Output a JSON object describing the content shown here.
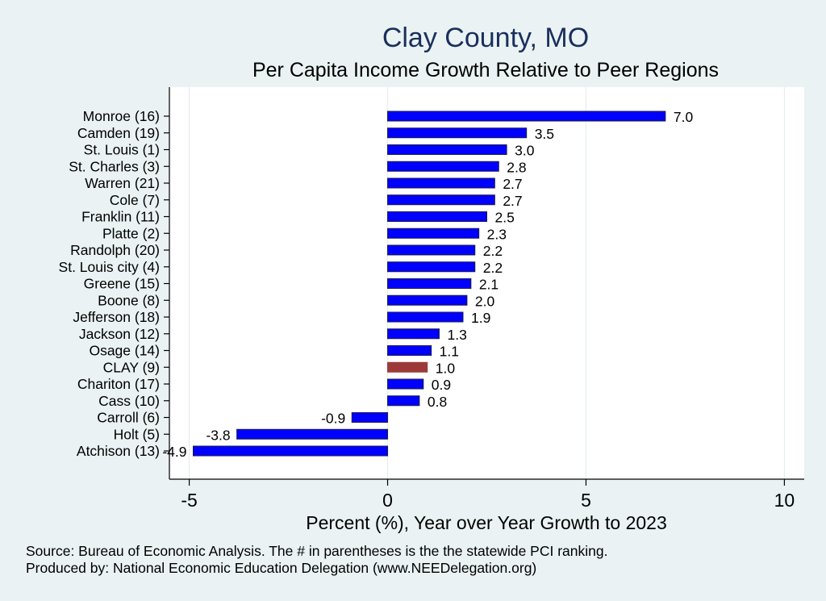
{
  "chart_data": {
    "type": "bar",
    "orientation": "horizontal",
    "title": "Clay County, MO",
    "subtitle": "Per Capita Income Growth Relative to Peer Regions",
    "xlabel": "Percent (%), Year over Year Growth to 2023",
    "ylabel": "",
    "xlim": [
      -5.5,
      10.5
    ],
    "xticks": [
      -5,
      0,
      5,
      10
    ],
    "grid": true,
    "colors": {
      "default": "#0000ff",
      "highlight": "#9c3a3a",
      "edge": "#1a1a4a"
    },
    "categories": [
      "Monroe (16)",
      "Camden (19)",
      "St. Louis  (1)",
      "St. Charles  (3)",
      "Warren (21)",
      "Cole  (7)",
      "Franklin (11)",
      "Platte  (2)",
      "Randolph (20)",
      "St. Louis city  (4)",
      "Greene (15)",
      "Boone  (8)",
      "Jefferson (18)",
      "Jackson (12)",
      "Osage (14)",
      "CLAY  (9)",
      "Chariton (17)",
      "Cass (10)",
      "Carroll  (6)",
      "Holt  (5)",
      "Atchison (13)"
    ],
    "values": [
      7.0,
      3.5,
      3.0,
      2.8,
      2.7,
      2.7,
      2.5,
      2.3,
      2.2,
      2.2,
      2.1,
      2.0,
      1.9,
      1.3,
      1.1,
      1.0,
      0.9,
      0.8,
      -0.9,
      -3.8,
      -4.9
    ],
    "value_labels": [
      "7.0",
      "3.5",
      "3.0",
      "2.8",
      "2.7",
      "2.7",
      "2.5",
      "2.3",
      "2.2",
      "2.2",
      "2.1",
      "2.0",
      "1.9",
      "1.3",
      "1.1",
      "1.0",
      "0.9",
      "0.8",
      "-0.9",
      "-3.8",
      "-4.9"
    ],
    "highlight": "CLAY  (9)"
  },
  "notes": {
    "source": "Source: Bureau of Economic Analysis. The # in parentheses is the the statewide PCI ranking.",
    "produced_by": "Produced by: National Economic Education Delegation (www.NEEDelegation.org)"
  }
}
